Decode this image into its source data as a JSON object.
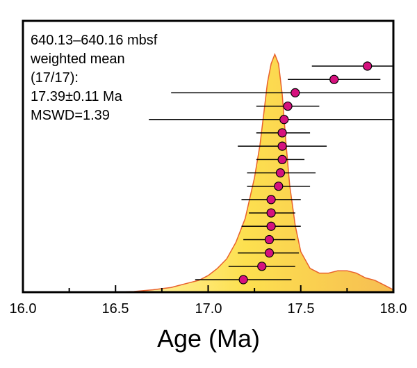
{
  "chart_data": {
    "type": "scatter",
    "xlabel": "Age (Ma)",
    "xlim": [
      16.0,
      18.0
    ],
    "x_ticks": [
      "16.0",
      "16.5",
      "17.0",
      "17.5",
      "18.0"
    ],
    "annotation_lines": [
      "640.13–640.16 mbsf",
      "weighted mean",
      "(17/17):",
      "17.39±0.11 Ma",
      "MSWD=1.39"
    ],
    "weighted_mean": 17.39,
    "weighted_mean_error": 0.11,
    "n_used": 17,
    "n_total": 17,
    "mswd": 1.39,
    "points": [
      {
        "age": 17.19,
        "low": 16.93,
        "high": 17.45
      },
      {
        "age": 17.29,
        "low": 17.11,
        "high": 17.47
      },
      {
        "age": 17.33,
        "low": 17.16,
        "high": 17.49
      },
      {
        "age": 17.33,
        "low": 17.19,
        "high": 17.47
      },
      {
        "age": 17.34,
        "low": 17.18,
        "high": 17.5
      },
      {
        "age": 17.34,
        "low": 17.22,
        "high": 17.47
      },
      {
        "age": 17.34,
        "low": 17.18,
        "high": 17.5
      },
      {
        "age": 17.38,
        "low": 17.21,
        "high": 17.55
      },
      {
        "age": 17.39,
        "low": 17.21,
        "high": 17.58
      },
      {
        "age": 17.4,
        "low": 17.26,
        "high": 17.52
      },
      {
        "age": 17.4,
        "low": 17.16,
        "high": 17.64
      },
      {
        "age": 17.4,
        "low": 17.26,
        "high": 17.55
      },
      {
        "age": 17.41,
        "low": 16.68,
        "high": 18.0
      },
      {
        "age": 17.43,
        "low": 17.26,
        "high": 17.6
      },
      {
        "age": 17.47,
        "low": 16.8,
        "high": 18.0
      },
      {
        "age": 17.68,
        "low": 17.43,
        "high": 17.93
      },
      {
        "age": 17.86,
        "low": 17.56,
        "high": 18.0
      }
    ],
    "probability_curve": {
      "x": [
        16.4,
        16.6,
        16.7,
        16.8,
        16.9,
        16.95,
        17.0,
        17.05,
        17.1,
        17.15,
        17.2,
        17.25,
        17.28,
        17.3,
        17.32,
        17.34,
        17.36,
        17.38,
        17.4,
        17.42,
        17.44,
        17.47,
        17.5,
        17.55,
        17.6,
        17.65,
        17.7,
        17.75,
        17.8,
        17.85,
        17.9,
        17.95,
        18.0
      ],
      "y": [
        0.0,
        0.003,
        0.01,
        0.02,
        0.04,
        0.05,
        0.07,
        0.1,
        0.14,
        0.21,
        0.31,
        0.48,
        0.62,
        0.75,
        0.88,
        0.96,
        1.0,
        0.96,
        0.83,
        0.63,
        0.45,
        0.28,
        0.17,
        0.1,
        0.08,
        0.08,
        0.09,
        0.09,
        0.08,
        0.06,
        0.05,
        0.03,
        0.01
      ]
    },
    "colors": {
      "marker_fill": "#d6117e",
      "curve_outline": "#e8612c",
      "fill_light": "#fff9c2",
      "fill_yellow": "#fde04f",
      "fill_orange": "#f6bd52",
      "error_bar": "#000000",
      "frame": "#000000"
    }
  }
}
